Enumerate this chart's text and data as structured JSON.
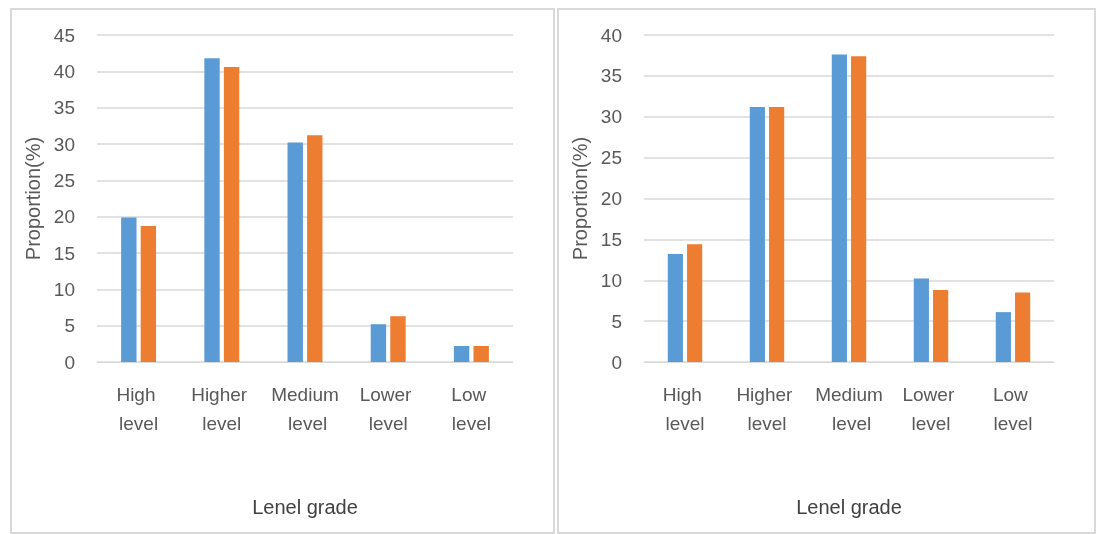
{
  "chart_data": [
    {
      "type": "bar",
      "xlabel": "Lenel grade",
      "ylabel": "Proportion(%)",
      "categories": [
        "High level",
        "Higher level",
        "Medium level",
        "Lower level",
        "Low level"
      ],
      "series": [
        {
          "color": "#5b9bd5",
          "values": [
            19.9,
            41.8,
            30.2,
            5.2,
            2.2
          ]
        },
        {
          "color": "#ed7d31",
          "values": [
            18.7,
            40.6,
            31.2,
            6.3,
            2.2
          ]
        }
      ],
      "ylim": [
        0,
        45
      ],
      "yticks": [
        0,
        5,
        10,
        15,
        20,
        25,
        30,
        35,
        40,
        45
      ],
      "grid": "y"
    },
    {
      "type": "bar",
      "xlabel": "Lenel grade",
      "ylabel": "Proportion(%)",
      "categories": [
        "High level",
        "Higher level",
        "Medium level",
        "Lower level",
        "Low level"
      ],
      "series": [
        {
          "color": "#5b9bd5",
          "values": [
            13.2,
            31.2,
            37.6,
            10.2,
            6.1
          ]
        },
        {
          "color": "#ed7d31",
          "values": [
            14.4,
            31.2,
            37.4,
            8.8,
            8.5
          ]
        }
      ],
      "ylim": [
        0,
        40
      ],
      "yticks": [
        0,
        5,
        10,
        15,
        20,
        25,
        30,
        35,
        40
      ],
      "grid": "y"
    }
  ]
}
